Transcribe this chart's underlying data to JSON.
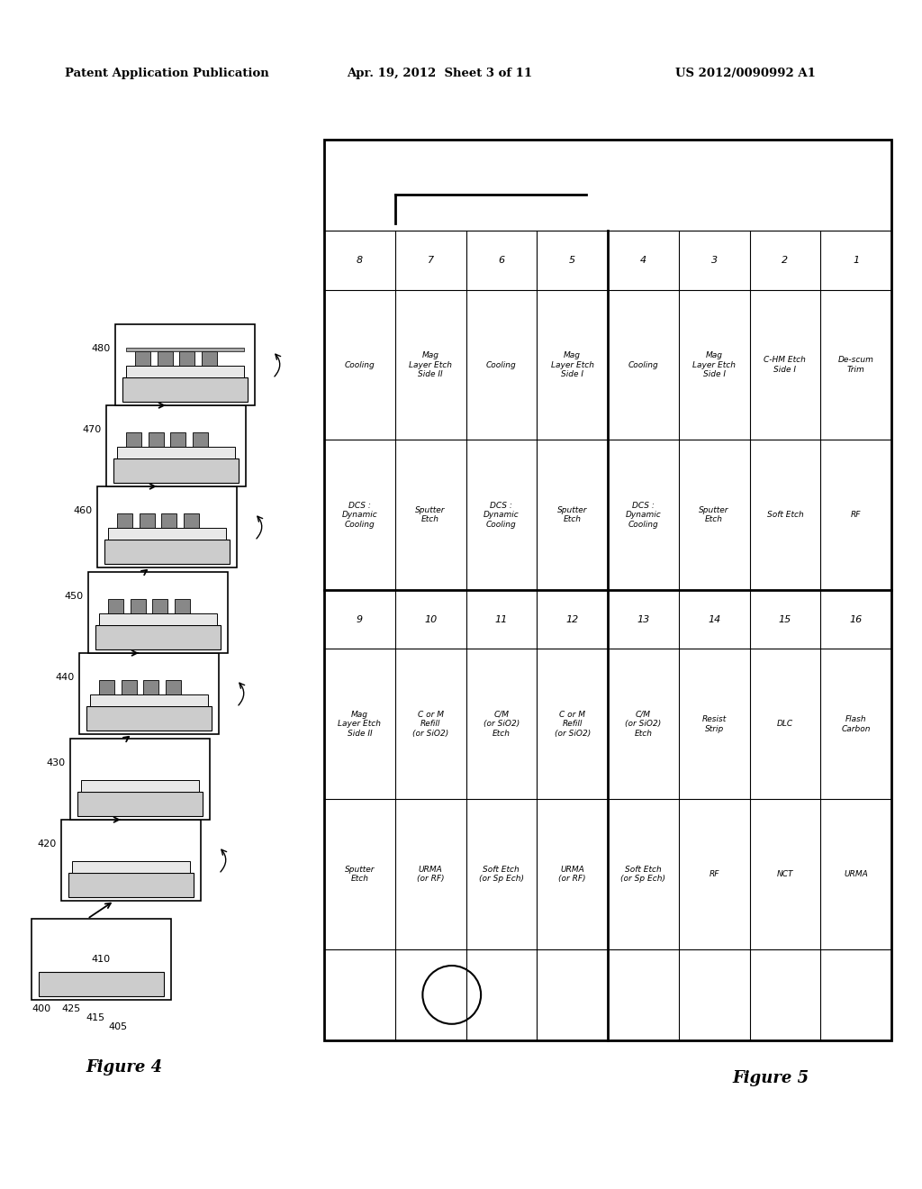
{
  "header_text": [
    "Patent Application Publication",
    "Apr. 19, 2012  Sheet 3 of 11",
    "US 2012/0090992 A1"
  ],
  "figure4_label": "Figure 4",
  "figure5_label": "Figure 5",
  "bg_color": "#ffffff",
  "top_nums": [
    "8",
    "7",
    "6",
    "5",
    "4",
    "3",
    "2",
    "1"
  ],
  "top_proc": [
    "Cooling",
    "Mag\nLayer Etch\nSide II",
    "Cooling",
    "Mag\nLayer Etch\nSide I",
    "Cooling",
    "Mag\nLayer Etch\nSide I",
    "C-HM Etch\nSide I",
    "De-scum\nTrim"
  ],
  "top_etch": [
    "DCS :\nDynamic\nCooling",
    "Sputter\nEtch",
    "DCS :\nDynamic\nCooling",
    "Sputter\nEtch",
    "DCS :\nDynamic\nCooling",
    "Sputter\nEtch",
    "Soft Etch",
    "RF"
  ],
  "bot_nums": [
    "9",
    "10",
    "11",
    "12",
    "13",
    "14",
    "15",
    "16"
  ],
  "bot_proc": [
    "Mag\nLayer Etch\nSide II",
    "C or M\nRefill\n(or SiO2)",
    "C/M\n(or SiO2)\nEtch",
    "C or M\nRefill\n(or SiO2)",
    "C/M\n(or SiO2)\nEtch",
    "Resist\nStrip",
    "DLC",
    "Flash\nCarbon"
  ],
  "bot_etch": [
    "Sputter\nEtch",
    "URMA\n(or RF)",
    "Soft Etch\n(or Sp Ech)",
    "URMA\n(or RF)",
    "Soft Etch\n(or Sp Ech)",
    "RF",
    "NCT",
    "URMA"
  ]
}
